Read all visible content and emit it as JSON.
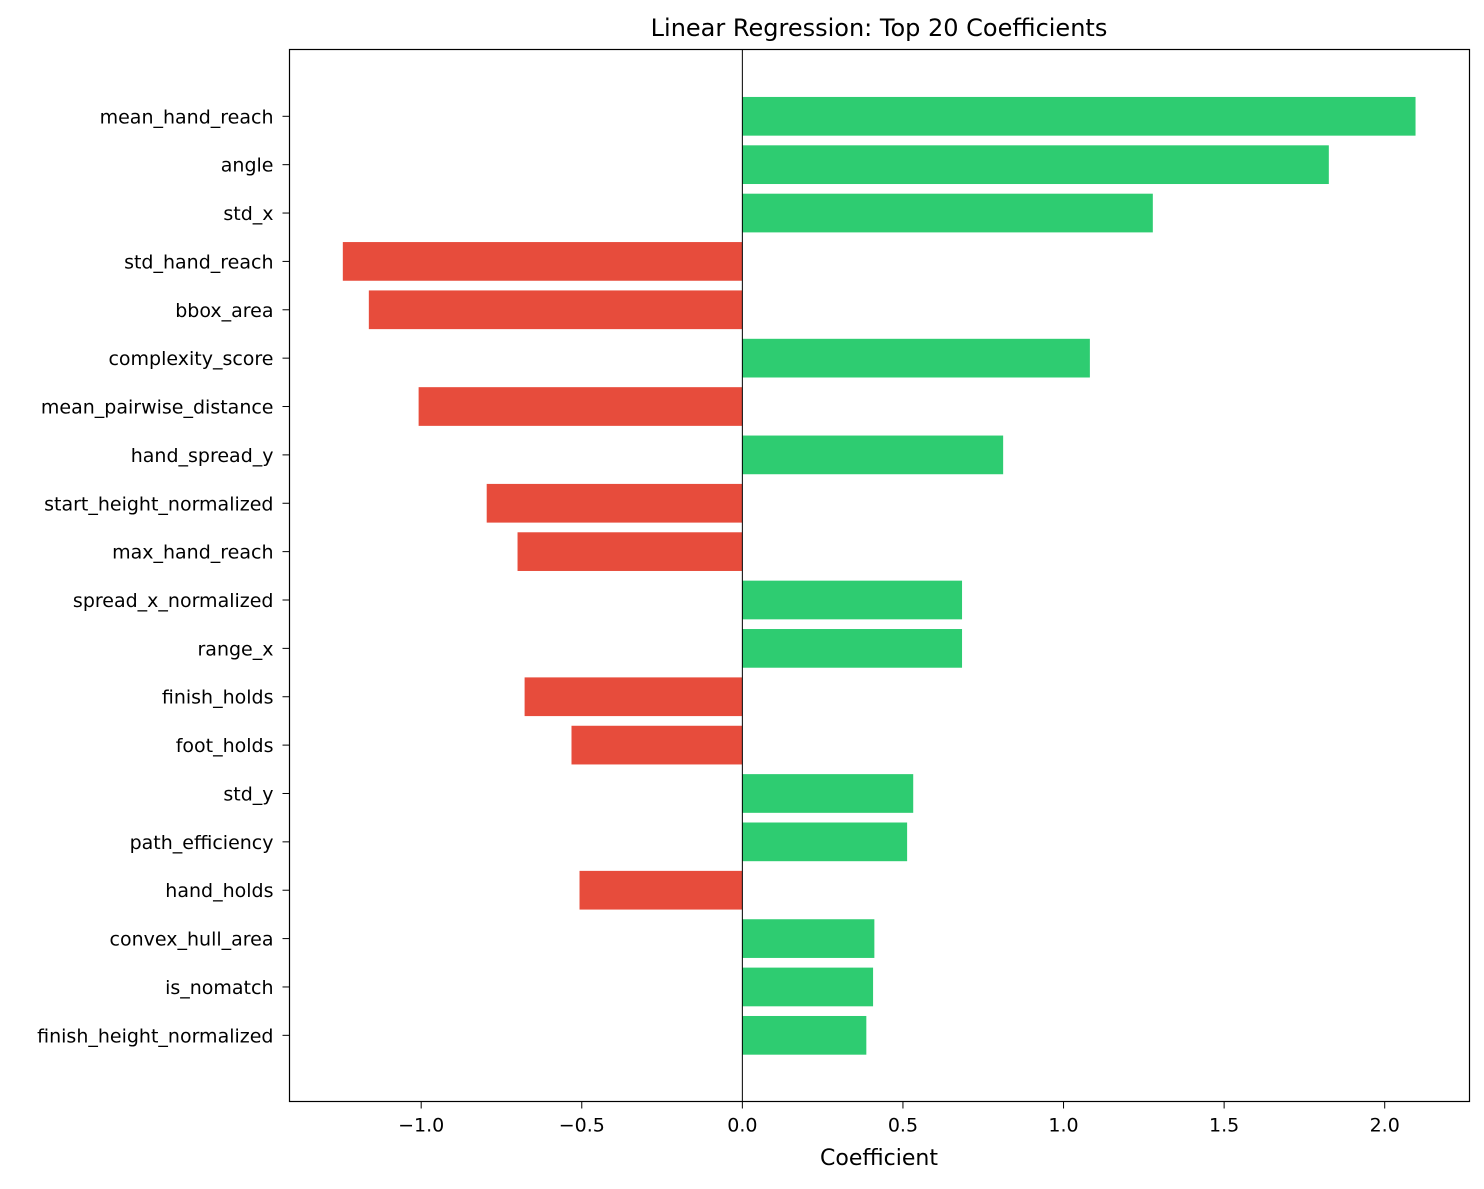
{
  "chart_data": {
    "type": "bar",
    "orientation": "horizontal",
    "title": "Linear Regression: Top 20 Coefficients",
    "xlabel": "Coefficient",
    "ylabel": "",
    "xlim": [
      -1.41,
      2.264
    ],
    "xticks": [
      -1.0,
      -0.5,
      0.0,
      0.5,
      1.0,
      1.5,
      2.0
    ],
    "xtick_labels": [
      "−1.0",
      "−0.5",
      "0.0",
      "0.5",
      "1.0",
      "1.5",
      "2.0"
    ],
    "grid": false,
    "positive_color": "#2ecc71",
    "negative_color": "#e74c3c",
    "categories": [
      "mean_hand_reach",
      "angle",
      "std_x",
      "std_hand_reach",
      "bbox_area",
      "complexity_score",
      "mean_pairwise_distance",
      "hand_spread_y",
      "start_height_normalized",
      "max_hand_reach",
      "spread_x_normalized",
      "range_x",
      "finish_holds",
      "foot_holds",
      "std_y",
      "path_efficiency",
      "hand_holds",
      "convex_hull_area",
      "is_nomatch",
      "finish_height_normalized"
    ],
    "values": [
      2.096,
      1.826,
      1.278,
      -1.244,
      -1.163,
      1.082,
      -1.008,
      0.812,
      -0.796,
      -0.7,
      0.684,
      0.684,
      -0.678,
      -0.532,
      0.532,
      0.513,
      -0.507,
      0.411,
      0.407,
      0.386
    ]
  }
}
